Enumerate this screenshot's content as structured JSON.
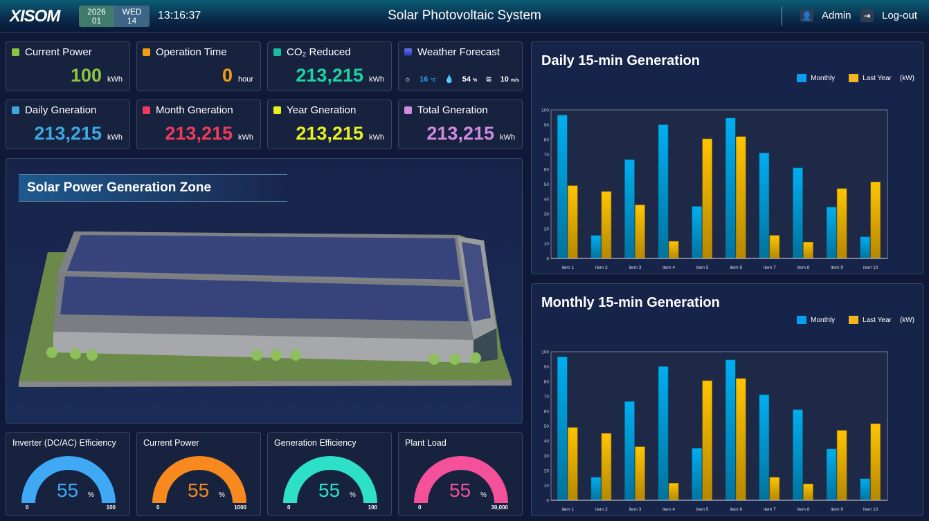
{
  "header": {
    "logo": "XISOM",
    "year": "2026",
    "month": "01",
    "weekday": "WED",
    "day": "14",
    "time": "13:16:37",
    "title": "Solar Photovoltaic System",
    "user": "Admin",
    "logout": "Log-out"
  },
  "cards": [
    {
      "label": "Current Power",
      "value": "100",
      "unit": "kWh",
      "color": "#8cc63f",
      "valueColor": "#8cc63f"
    },
    {
      "label": "Operation Time",
      "value": "0",
      "unit": "hour",
      "color": "#f39c12",
      "valueColor": "#f39c12"
    },
    {
      "label": "CO₂ Reduced",
      "value": "213,215",
      "unit": "kWh",
      "color": "#1abc9c",
      "valueColor": "#1dd3a0"
    },
    {
      "label": "Daily Gneration",
      "value": "213,215",
      "unit": "kWh",
      "color": "#3ea6e0",
      "valueColor": "#3ea6e0"
    },
    {
      "label": "Month Gneration",
      "value": "213,215",
      "unit": "kWh",
      "color": "#f03a5a",
      "valueColor": "#f03a5a"
    },
    {
      "label": "Year Gneration",
      "value": "213,215",
      "unit": "kWh",
      "color": "#e8f020",
      "valueColor": "#e8f020"
    },
    {
      "label": "Total Gneration",
      "value": "213,215",
      "unit": "kWh",
      "color": "#d08ae0",
      "valueColor": "#d08ae0"
    }
  ],
  "weather": {
    "label": "Weather Forecast",
    "temp": "16",
    "temp_unit": "℃",
    "humidity": "54",
    "humidity_unit": "%",
    "wind": "10",
    "wind_unit": "m/s"
  },
  "zone": {
    "title": "Solar Power Generation Zone"
  },
  "gauges": [
    {
      "title": "Inverter (DC/AC) Efficiency",
      "value": "55",
      "unit": "%",
      "min": "0",
      "max": "100",
      "color": "#3fa9f5"
    },
    {
      "title": "Current Power",
      "value": "55",
      "unit": "%",
      "min": "0",
      "max": "1000",
      "color": "#f7891f"
    },
    {
      "title": "Generation Efficiency",
      "value": "55",
      "unit": "%",
      "min": "0",
      "max": "100",
      "color": "#2ee0c8"
    },
    {
      "title": "Plant Load",
      "value": "55",
      "unit": "%",
      "min": "0",
      "max": "30,000",
      "color": "#f5509a"
    }
  ],
  "chart_data": [
    {
      "type": "bar",
      "title": "Daily 15-min Generation",
      "legend": [
        "Monthly",
        "Last Year"
      ],
      "unit_label": "(kW)",
      "ylim": [
        0,
        100
      ],
      "yticks": [
        0,
        10,
        20,
        30,
        40,
        50,
        60,
        70,
        80,
        90,
        100
      ],
      "categories": [
        "item 1",
        "item 2",
        "item 3",
        "item 4",
        "item 5",
        "item 6",
        "item 7",
        "item 8",
        "item 9",
        "item 10"
      ],
      "series": [
        {
          "name": "Monthly",
          "color": "#0a9ef0",
          "values": [
            96.5,
            15.5,
            66.5,
            90,
            35,
            94.5,
            71,
            61,
            34.5,
            14.5
          ]
        },
        {
          "name": "Last Year",
          "color": "#f5b51e",
          "values": [
            49,
            45,
            36,
            11.5,
            80.5,
            82,
            15.5,
            11,
            47,
            51.5
          ]
        }
      ]
    },
    {
      "type": "bar",
      "title": "Monthly 15-min Generation",
      "legend": [
        "Monthly",
        "Last Year"
      ],
      "unit_label": "(kW)",
      "ylim": [
        0,
        100
      ],
      "yticks": [
        0,
        10,
        20,
        30,
        40,
        50,
        60,
        70,
        80,
        90,
        100
      ],
      "categories": [
        "item 1",
        "item 2",
        "item 3",
        "item 4",
        "item 5",
        "item 6",
        "item 7",
        "item 8",
        "item 9",
        "item 10"
      ],
      "series": [
        {
          "name": "Monthly",
          "color": "#0a9ef0",
          "values": [
            96.5,
            15.5,
            66.5,
            90,
            35,
            94.5,
            71,
            61,
            34.5,
            14.5
          ]
        },
        {
          "name": "Last Year",
          "color": "#f5b51e",
          "values": [
            49,
            45,
            36,
            11.5,
            80.5,
            82,
            15.5,
            11,
            47,
            51.5
          ]
        }
      ]
    }
  ]
}
